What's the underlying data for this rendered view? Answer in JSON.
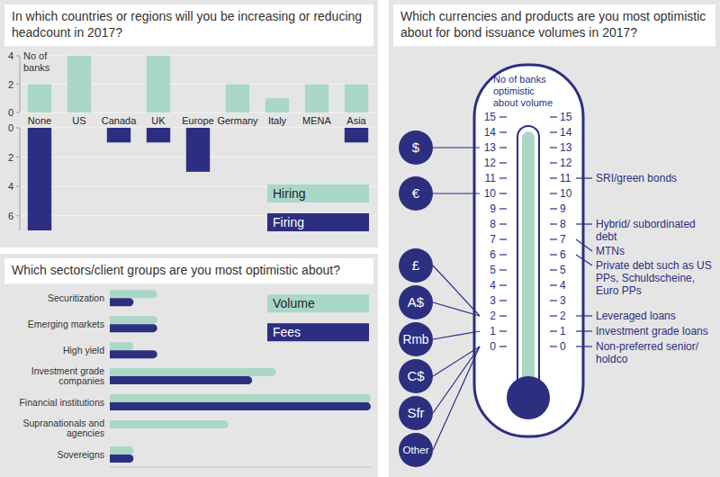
{
  "chart_data": [
    {
      "type": "bar",
      "title": "In which countries or regions will you be increasing or reducing headcount in 2017?",
      "y_label": "No of banks",
      "categories": [
        "None",
        "US",
        "Canada",
        "UK",
        "Europe",
        "Germany",
        "Italy",
        "MENA",
        "Asia"
      ],
      "series": [
        {
          "name": "Hiring",
          "color": "#a9d8c6",
          "values": [
            2,
            4,
            0,
            4,
            0,
            2,
            1,
            2,
            2
          ]
        },
        {
          "name": "Firing",
          "color": "#2c2f80",
          "values": [
            7,
            0,
            1,
            1,
            3,
            0,
            0,
            0,
            1
          ],
          "axis": "y2"
        }
      ],
      "ylim": [
        0,
        4
      ],
      "yticks": [
        0,
        2,
        4
      ],
      "y2lim": [
        0,
        7
      ],
      "y2ticks": [
        0,
        2,
        4,
        6
      ],
      "grid": true,
      "legend": "lower right"
    },
    {
      "type": "bar",
      "orientation": "horizontal",
      "title": "Which sectors/client groups are you most optimistic about?",
      "categories": [
        "Securitization",
        "Emerging markets",
        "High yield",
        "Investment grade companies",
        "Financial institutions",
        "Supranationals and agencies",
        "Sovereigns"
      ],
      "series": [
        {
          "name": "Volume",
          "color": "#a9d8c6",
          "values": [
            2,
            2,
            1,
            7,
            11,
            5,
            1
          ]
        },
        {
          "name": "Fees",
          "color": "#2c2f80",
          "values": [
            1,
            2,
            2,
            6,
            11,
            0,
            1
          ]
        }
      ],
      "xlim": [
        0,
        11
      ],
      "tick_labels": false,
      "legend": "upper right"
    },
    {
      "type": "thermometer",
      "title": "Which currencies and products are you most optimistic about for bond issuance volumes in 2017?",
      "y_label": "No of banks optimistic about volume",
      "color": "#2c2f80",
      "ylim": [
        0,
        15
      ],
      "yticks": [
        0,
        1,
        2,
        3,
        4,
        5,
        6,
        7,
        8,
        9,
        10,
        11,
        12,
        13,
        14,
        15
      ],
      "currencies": {
        "categories": [
          "$",
          "€",
          "£",
          "A$",
          "Rmb",
          "C$",
          "Sfr",
          "Other"
        ],
        "values": [
          13,
          10,
          2,
          2,
          1,
          0,
          0,
          0
        ]
      },
      "products": {
        "categories": [
          "SRI/green bonds",
          "Hybrid/ subordinated debt",
          "MTNs",
          "Private debt such as US PPs, Schuldscheine, Euro PPs",
          "Leveraged loans",
          "Investment grade loans",
          "Non-preferred senior/ holdco"
        ],
        "values": [
          11,
          8,
          7,
          6,
          2,
          1,
          0
        ]
      }
    }
  ]
}
